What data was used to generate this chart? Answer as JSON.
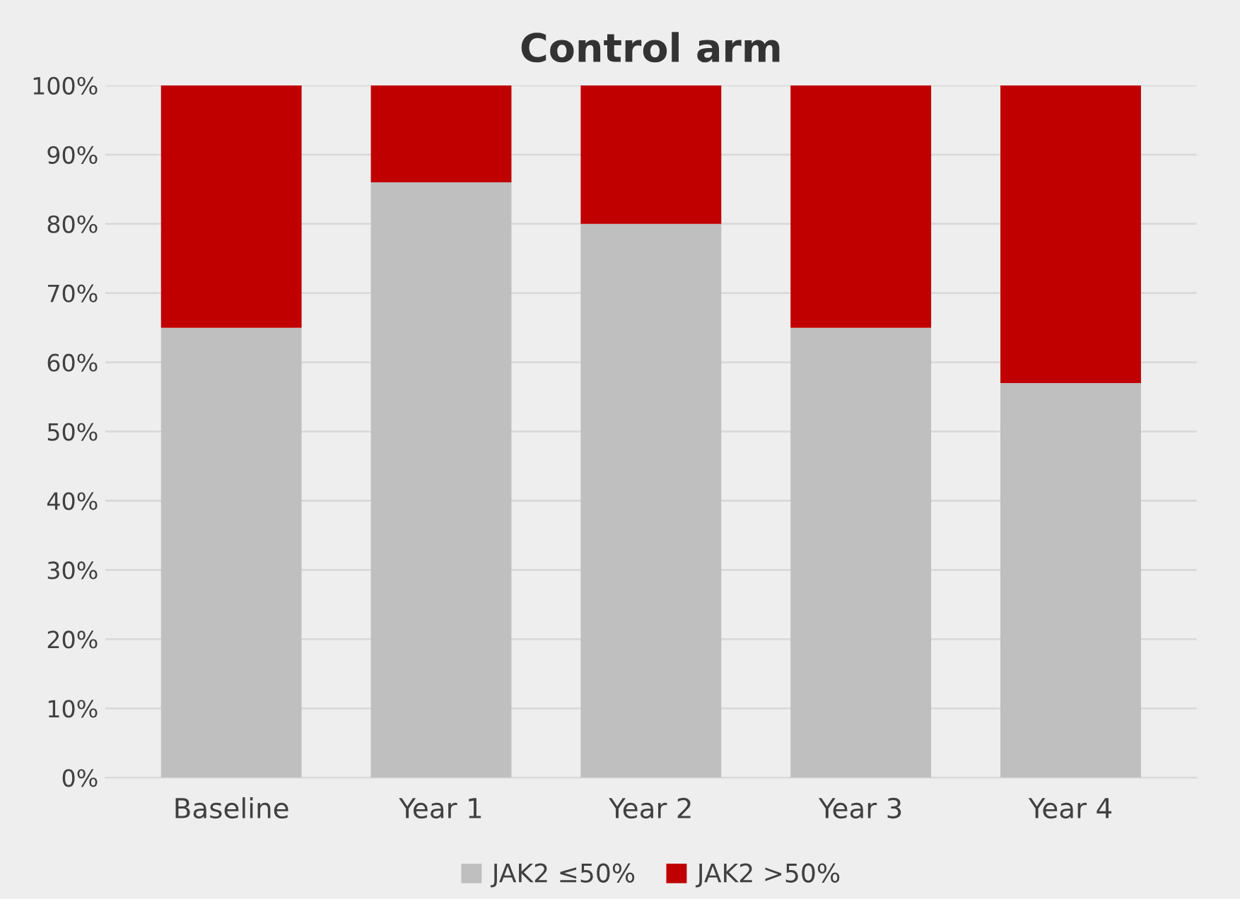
{
  "chart_data": {
    "type": "bar",
    "title": "Control arm",
    "categories": [
      "Baseline",
      "Year 1",
      "Year 2",
      "Year 3",
      "Year 4"
    ],
    "stacked": true,
    "series": [
      {
        "name": "JAK2 ≤50%",
        "color": "#bfbfbf",
        "values": [
          65,
          86,
          80,
          65,
          57
        ]
      },
      {
        "name": "JAK2 >50%",
        "color": "#c00000",
        "values": [
          35,
          14,
          20,
          35,
          43
        ]
      }
    ],
    "ylim": [
      0,
      100
    ],
    "yticks": [
      {
        "value": 0,
        "label": "0%"
      },
      {
        "value": 10,
        "label": "10%"
      },
      {
        "value": 20,
        "label": "20%"
      },
      {
        "value": 30,
        "label": "30%"
      },
      {
        "value": 40,
        "label": "40%"
      },
      {
        "value": 50,
        "label": "50%"
      },
      {
        "value": 60,
        "label": "60%"
      },
      {
        "value": 70,
        "label": "70%"
      },
      {
        "value": 80,
        "label": "80%"
      },
      {
        "value": 90,
        "label": "90%"
      },
      {
        "value": 100,
        "label": "100%"
      }
    ],
    "grid": "y",
    "legend": "bottom"
  }
}
